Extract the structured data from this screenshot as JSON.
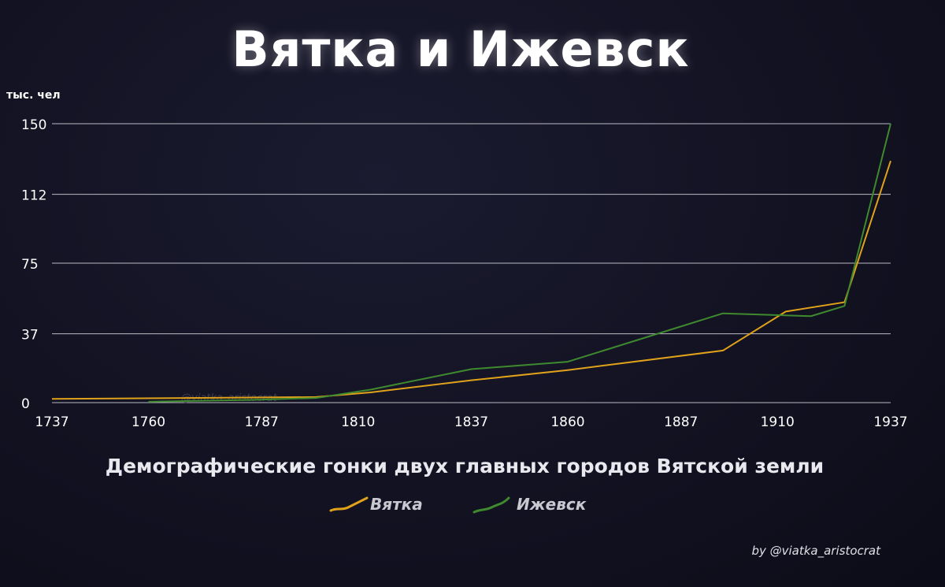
{
  "title": "Вятка и Ижевск",
  "subtitle": "Демографические гонки двух главных городов Вятской земли",
  "credit": "by @viatka_aristocrat",
  "watermark": "@viatka_aristocrat",
  "colors": {
    "background": "#121222",
    "gridline": "#d8d8e0",
    "text": "#ffffff",
    "vyatka": "#e0a21a",
    "izhevsk": "#3f8a2e"
  },
  "chart_data": {
    "type": "line",
    "ylabel": "тыс. чел",
    "xlabel": "",
    "x_ticks": [
      1737,
      1760,
      1787,
      1810,
      1837,
      1860,
      1887,
      1910,
      1937
    ],
    "y_ticks": [
      0,
      37,
      75,
      112,
      150
    ],
    "y_tick_labels": [
      "0",
      "37",
      "75",
      "112",
      "150"
    ],
    "xlim": [
      1737,
      1937
    ],
    "ylim": [
      0,
      150
    ],
    "grid": "horizontal",
    "legend_position": "bottom-center",
    "series": [
      {
        "name": "Вятка",
        "color": "#e0a21a",
        "points": [
          [
            1737,
            2
          ],
          [
            1800,
            3
          ],
          [
            1813,
            5.5
          ],
          [
            1837,
            12
          ],
          [
            1860,
            17.5
          ],
          [
            1897,
            28
          ],
          [
            1912,
            49
          ],
          [
            1926,
            54
          ],
          [
            1937,
            130
          ]
        ]
      },
      {
        "name": "Ижевск",
        "color": "#3f8a2e",
        "points": [
          [
            1760,
            0.5
          ],
          [
            1785,
            1.5
          ],
          [
            1800,
            2.5
          ],
          [
            1813,
            7
          ],
          [
            1837,
            18
          ],
          [
            1860,
            22
          ],
          [
            1897,
            48
          ],
          [
            1918,
            46.5
          ],
          [
            1926,
            52
          ],
          [
            1937,
            150
          ]
        ]
      }
    ]
  }
}
